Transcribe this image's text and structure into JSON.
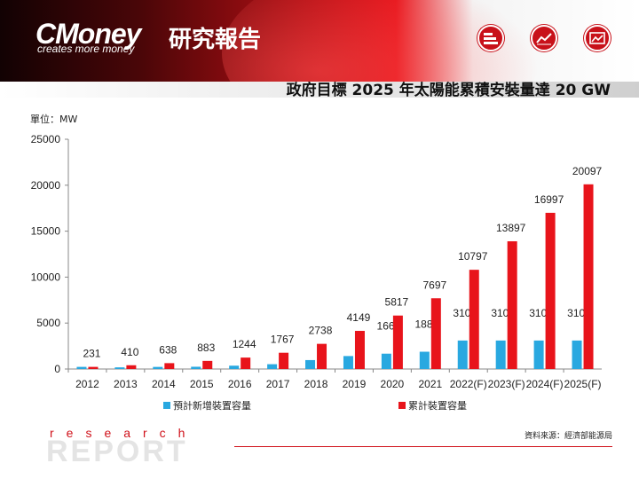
{
  "header": {
    "logo": "CMoney",
    "logo_cn": "研究報告",
    "tagline": "creates more money",
    "icons": [
      "stack-icon",
      "line-chart-icon",
      "picture-icon"
    ]
  },
  "title": "政府目標 2025 年太陽能累積安裝量達 20 GW",
  "unit_label": "單位：MW",
  "source": "資料來源：經濟部能源局",
  "footer": {
    "research": "research",
    "report": "REPORT"
  },
  "colors": {
    "new_capacity": "#29a8e0",
    "cumulative": "#e8141b",
    "brand_red": "#d0111a"
  },
  "chart_data": {
    "type": "bar",
    "categories": [
      "2012",
      "2013",
      "2014",
      "2015",
      "2016",
      "2017",
      "2018",
      "2019",
      "2020",
      "2021",
      "2022(F)",
      "2023(F)",
      "2024(F)",
      "2025(F)"
    ],
    "series": [
      {
        "name": "預計新增裝置容量",
        "values": [
          231,
          179,
          228,
          245,
          361,
          523,
          971,
          1411,
          1668,
          1880,
          3100,
          3100,
          3100,
          3100
        ],
        "labels": [
          "",
          "",
          "",
          "",
          "",
          "",
          "",
          "",
          "1668",
          "1880",
          "3100",
          "3100",
          "3100",
          "3100"
        ]
      },
      {
        "name": "累計裝置容量",
        "values": [
          231,
          410,
          638,
          883,
          1244,
          1767,
          2738,
          4149,
          5817,
          7697,
          10797,
          13897,
          16997,
          20097
        ],
        "labels": [
          "231",
          "410",
          "638",
          "883",
          "1244",
          "1767",
          "2738",
          "4149",
          "5817",
          "7697",
          "10797",
          "13897",
          "16997",
          "20097"
        ]
      }
    ],
    "ylim": [
      0,
      25000
    ],
    "yticks": [
      "0",
      "5000",
      "10000",
      "15000",
      "20000",
      "25000"
    ],
    "grid": false,
    "legend": "bottom"
  }
}
